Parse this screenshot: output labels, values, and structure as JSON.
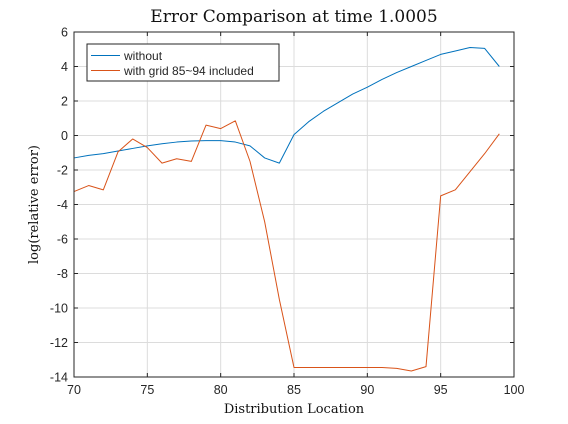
{
  "chart_data": {
    "type": "line",
    "title": "Error Comparison at time 1.0005",
    "xlabel": "Distribution Location",
    "ylabel": "log(relative error)",
    "xlim": [
      70,
      100
    ],
    "ylim": [
      -14,
      6
    ],
    "xticks": [
      70,
      75,
      80,
      85,
      90,
      95,
      100
    ],
    "yticks": [
      6,
      4,
      2,
      0,
      -2,
      -4,
      -6,
      -8,
      -10,
      -12,
      -14
    ],
    "grid": true,
    "legend_position": "top-left",
    "series": [
      {
        "name": "without",
        "color": "#0072BD",
        "x": [
          70,
          71,
          72,
          73,
          74,
          75,
          76,
          77,
          78,
          79,
          80,
          81,
          82,
          83,
          84,
          85,
          86,
          87,
          88,
          89,
          90,
          91,
          92,
          93,
          94,
          95,
          96,
          97,
          98,
          99
        ],
        "y": [
          -1.3,
          -1.15,
          -1.05,
          -0.9,
          -0.75,
          -0.6,
          -0.48,
          -0.38,
          -0.32,
          -0.3,
          -0.3,
          -0.38,
          -0.6,
          -1.3,
          -1.6,
          0.05,
          0.8,
          1.4,
          1.9,
          2.4,
          2.8,
          3.25,
          3.65,
          4.0,
          4.35,
          4.7,
          4.9,
          5.1,
          5.05,
          4.0
        ]
      },
      {
        "name": "with grid 85~94 included",
        "color": "#D95319",
        "x": [
          70,
          71,
          72,
          73,
          74,
          75,
          76,
          77,
          78,
          79,
          80,
          81,
          82,
          83,
          84,
          85,
          86,
          87,
          88,
          89,
          90,
          91,
          92,
          93,
          94,
          95,
          96,
          97,
          98,
          99
        ],
        "y": [
          -3.25,
          -2.9,
          -3.15,
          -0.95,
          -0.2,
          -0.7,
          -1.6,
          -1.35,
          -1.5,
          0.6,
          0.4,
          0.85,
          -1.5,
          -5.0,
          -9.5,
          -13.45,
          -13.45,
          -13.45,
          -13.45,
          -13.45,
          -13.45,
          -13.45,
          -13.5,
          -13.65,
          -13.4,
          -3.5,
          -3.15,
          -2.1,
          -1.05,
          0.1
        ]
      }
    ]
  }
}
